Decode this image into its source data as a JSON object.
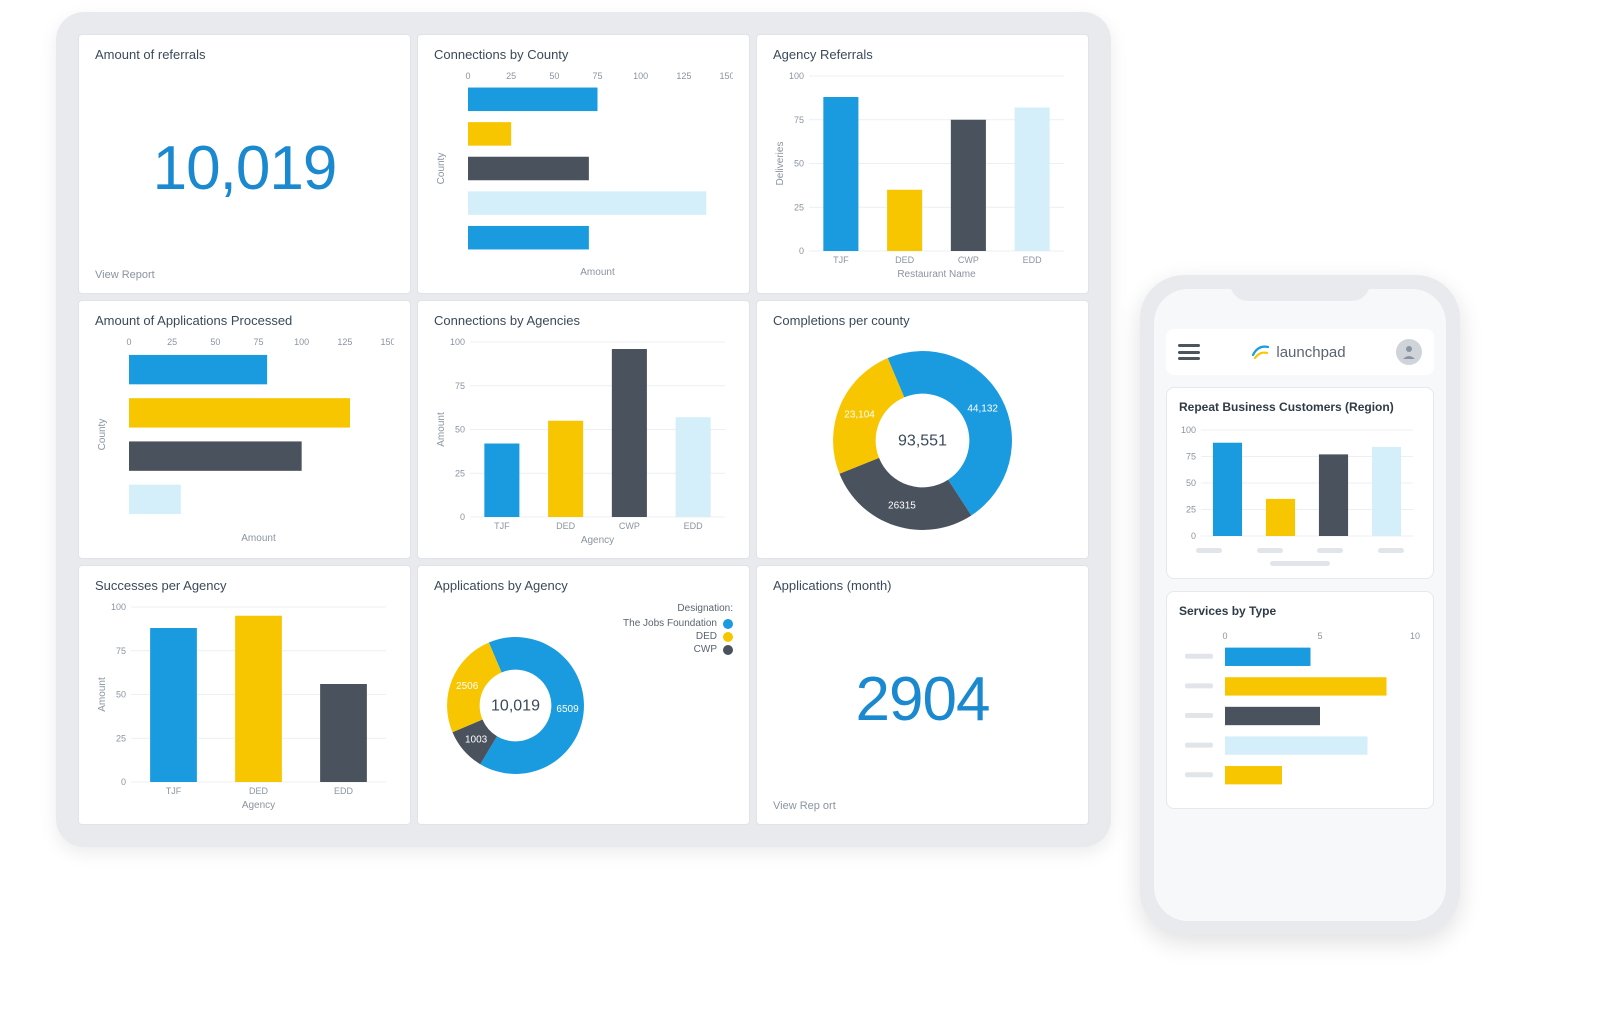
{
  "palette": {
    "blue": "#1a9be0",
    "yellow": "#f7c600",
    "dark": "#4a525d",
    "lightblue": "#d4eefa",
    "grid": "#d9dee3",
    "text_muted": "#8a94a0",
    "accent_number": "#1a89d0",
    "card_bg": "#ffffff",
    "panel_bg": "#e8eaed"
  },
  "cards": {
    "referrals": {
      "title": "Amount of referrals",
      "value": "10,019",
      "footer": "View Report"
    },
    "conn_county": {
      "title": "Connections by County",
      "type": "bar-h",
      "xticks": [
        0,
        25,
        50,
        75,
        100,
        125,
        150
      ],
      "xlim": [
        0,
        150
      ],
      "ylabel": "County",
      "xlabel": "Amount",
      "bars": [
        {
          "value": 75,
          "color": "#1a9be0"
        },
        {
          "value": 25,
          "color": "#f7c600"
        },
        {
          "value": 70,
          "color": "#4a525d"
        },
        {
          "value": 138,
          "color": "#d4eefa"
        },
        {
          "value": 70,
          "color": "#1a9be0"
        }
      ]
    },
    "agency_referrals": {
      "title": "Agency Referrals",
      "type": "bar-v",
      "yticks": [
        0,
        25,
        50,
        75,
        100
      ],
      "ylim": [
        0,
        100
      ],
      "ylabel": "Deliveries",
      "xlabel": "Restaurant Name",
      "bars": [
        {
          "label": "TJF",
          "value": 88,
          "color": "#1a9be0"
        },
        {
          "label": "DED",
          "value": 35,
          "color": "#f7c600"
        },
        {
          "label": "CWP",
          "value": 75,
          "color": "#4a525d"
        },
        {
          "label": "EDD",
          "value": 82,
          "color": "#d4eefa"
        }
      ]
    },
    "apps_processed": {
      "title": "Amount of Applications Processed",
      "type": "bar-h",
      "xticks": [
        0,
        25,
        50,
        75,
        100,
        125,
        150
      ],
      "xlim": [
        0,
        150
      ],
      "ylabel": "County",
      "xlabel": "Amount",
      "bars": [
        {
          "value": 80,
          "color": "#1a9be0"
        },
        {
          "value": 128,
          "color": "#f7c600"
        },
        {
          "value": 100,
          "color": "#4a525d"
        },
        {
          "value": 30,
          "color": "#d4eefa"
        }
      ]
    },
    "conn_agencies": {
      "title": "Connections by Agencies",
      "type": "bar-v",
      "yticks": [
        0,
        25,
        50,
        75,
        100
      ],
      "ylim": [
        0,
        100
      ],
      "ylabel": "Amount",
      "xlabel": "Agency",
      "bars": [
        {
          "label": "TJF",
          "value": 42,
          "color": "#1a9be0"
        },
        {
          "label": "DED",
          "value": 55,
          "color": "#f7c600"
        },
        {
          "label": "CWP",
          "value": 96,
          "color": "#4a525d"
        },
        {
          "label": "EDD",
          "value": 57,
          "color": "#d4eefa"
        }
      ]
    },
    "completions": {
      "title": "Completions per county",
      "type": "donut",
      "center_value": "93,551",
      "slices": [
        {
          "label": "44,132",
          "value": 44132,
          "color": "#1a9be0"
        },
        {
          "label": "26315",
          "value": 26315,
          "color": "#4a525d"
        },
        {
          "label": "23,104",
          "value": 23104,
          "color": "#f7c600"
        }
      ]
    },
    "successes": {
      "title": "Successes per Agency",
      "type": "bar-v",
      "yticks": [
        0,
        25,
        50,
        75,
        100
      ],
      "ylim": [
        0,
        100
      ],
      "ylabel": "Amount",
      "xlabel": "Agency",
      "bars": [
        {
          "label": "TJF",
          "value": 88,
          "color": "#1a9be0"
        },
        {
          "label": "DED",
          "value": 95,
          "color": "#f7c600"
        },
        {
          "label": "EDD",
          "value": 56,
          "color": "#4a525d"
        }
      ]
    },
    "apps_by_agency": {
      "title": "Applications by Agency",
      "type": "donut",
      "center_value": "10,019",
      "legend_title": "Designation:",
      "legend": [
        {
          "label": "The Jobs Foundation",
          "color": "#1a9be0"
        },
        {
          "label": "DED",
          "color": "#f7c600"
        },
        {
          "label": "CWP",
          "color": "#4a525d"
        }
      ],
      "slices": [
        {
          "label": "6509",
          "value": 6509,
          "color": "#1a9be0"
        },
        {
          "label": "1003",
          "value": 1003,
          "color": "#4a525d"
        },
        {
          "label": "2506",
          "value": 2506,
          "color": "#f7c600"
        }
      ]
    },
    "apps_month": {
      "title": "Applications (month)",
      "value": "2904",
      "footer": "View Rep ort"
    }
  },
  "phone": {
    "brand": "launchpad",
    "card1": {
      "title": "Repeat Business Customers (Region)",
      "yticks": [
        0,
        25,
        50,
        75,
        100
      ],
      "ylim": [
        0,
        100
      ],
      "bars": [
        {
          "value": 88,
          "color": "#1a9be0"
        },
        {
          "value": 35,
          "color": "#f7c600"
        },
        {
          "value": 77,
          "color": "#4a525d"
        },
        {
          "value": 84,
          "color": "#d4eefa"
        }
      ]
    },
    "card2": {
      "title": "Services by Type",
      "xticks": [
        0,
        5,
        10
      ],
      "xlim": [
        0,
        10
      ],
      "bars": [
        {
          "value": 4.5,
          "color": "#1a9be0"
        },
        {
          "value": 8.5,
          "color": "#f7c600"
        },
        {
          "value": 5.0,
          "color": "#4a525d"
        },
        {
          "value": 7.5,
          "color": "#d4eefa"
        },
        {
          "value": 3.0,
          "color": "#f7c600"
        }
      ]
    }
  }
}
